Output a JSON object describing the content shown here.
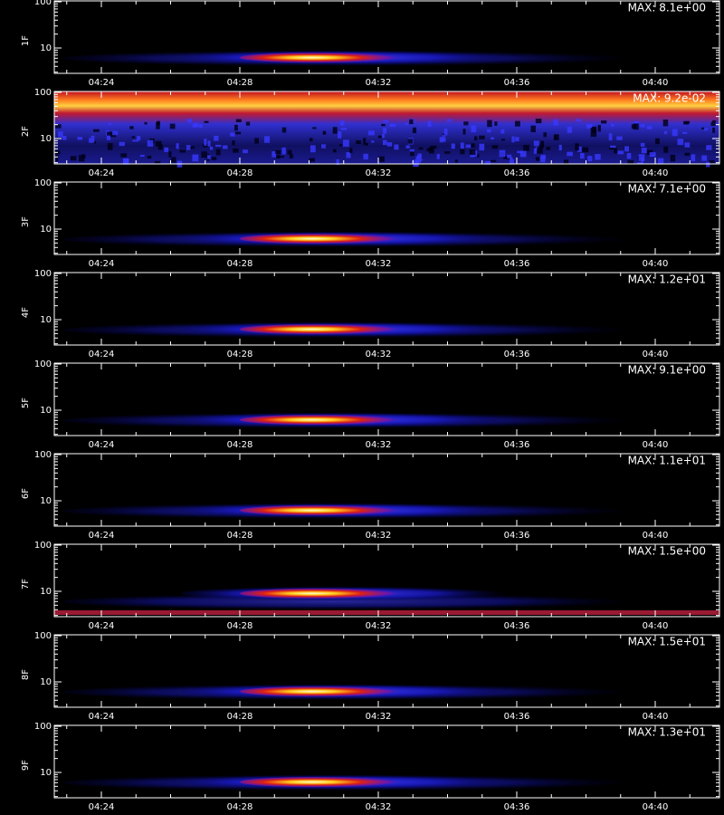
{
  "panels": [
    {
      "label": "1F",
      "max": "MAX: 8.1e+00"
    },
    {
      "label": "2F",
      "max": "MAX: 9.2e-02"
    },
    {
      "label": "3F",
      "max": "MAX: 7.1e+00"
    },
    {
      "label": "4F",
      "max": "MAX: 1.2e+01"
    },
    {
      "label": "5F",
      "max": "MAX: 9.1e+00"
    },
    {
      "label": "6F",
      "max": "MAX: 1.1e+01"
    },
    {
      "label": "7F",
      "max": "MAX: 1.5e+00"
    },
    {
      "label": "8F",
      "max": "MAX: 1.5e+01"
    },
    {
      "label": "9F",
      "max": "MAX: 1.3e+01"
    }
  ],
  "yticks": [
    "100",
    "10"
  ],
  "xticks": [
    "04:24",
    "04:28",
    "04:32",
    "04:36",
    "04:40"
  ]
}
